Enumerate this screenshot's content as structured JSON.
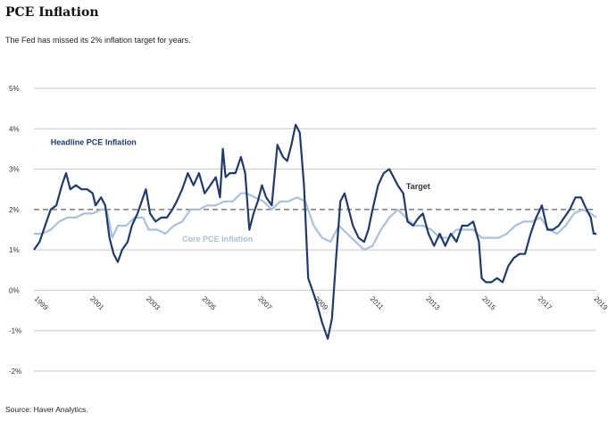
{
  "header": {
    "title": "PCE Inflation",
    "subtitle": "The Fed has missed its 2% inflation target for years."
  },
  "footer": {
    "source": "Source: Haver Analytics."
  },
  "colors": {
    "headline": "#1f3b6e",
    "core": "#a9c1da",
    "target": "#888888",
    "grid": "#c8c8c8"
  },
  "chart_data": {
    "type": "line",
    "title": "PCE Inflation",
    "ylim": [
      -2,
      5
    ],
    "xlim": [
      1999,
      2019.1
    ],
    "y_ticks": [
      -2,
      -1,
      0,
      1,
      2,
      3,
      4,
      5
    ],
    "y_tick_labels": [
      "-2%",
      "-1%",
      "0%",
      "1%",
      "2%",
      "3%",
      "4%",
      "5%"
    ],
    "x_ticks": [
      1999,
      2001,
      2003,
      2005,
      2007,
      2009,
      2011,
      2013,
      2015,
      2017,
      2019
    ],
    "x_tick_labels": [
      "1999",
      "2001",
      "2003",
      "2005",
      "2007",
      "2009",
      "2011",
      "2013",
      "2015",
      "2017",
      "2019"
    ],
    "grid": true,
    "target": {
      "name": "Target",
      "value": 2
    },
    "series": [
      {
        "name": "Headline PCE Inflation",
        "points": [
          [
            1999.0,
            1.0
          ],
          [
            1999.2,
            1.2
          ],
          [
            1999.4,
            1.6
          ],
          [
            1999.6,
            2.0
          ],
          [
            1999.8,
            2.1
          ],
          [
            2000.0,
            2.6
          ],
          [
            2000.15,
            2.9
          ],
          [
            2000.3,
            2.5
          ],
          [
            2000.5,
            2.6
          ],
          [
            2000.7,
            2.5
          ],
          [
            2000.9,
            2.5
          ],
          [
            2001.1,
            2.4
          ],
          [
            2001.2,
            2.1
          ],
          [
            2001.4,
            2.3
          ],
          [
            2001.55,
            2.1
          ],
          [
            2001.7,
            1.3
          ],
          [
            2001.85,
            0.9
          ],
          [
            2002.0,
            0.7
          ],
          [
            2002.15,
            1.0
          ],
          [
            2002.35,
            1.2
          ],
          [
            2002.5,
            1.6
          ],
          [
            2002.7,
            1.9
          ],
          [
            2002.85,
            2.2
          ],
          [
            2003.0,
            2.5
          ],
          [
            2003.15,
            1.9
          ],
          [
            2003.35,
            1.7
          ],
          [
            2003.55,
            1.8
          ],
          [
            2003.75,
            1.8
          ],
          [
            2003.95,
            2.0
          ],
          [
            2004.1,
            2.2
          ],
          [
            2004.3,
            2.5
          ],
          [
            2004.5,
            2.9
          ],
          [
            2004.7,
            2.6
          ],
          [
            2004.9,
            2.9
          ],
          [
            2005.1,
            2.4
          ],
          [
            2005.3,
            2.6
          ],
          [
            2005.5,
            2.8
          ],
          [
            2005.65,
            2.3
          ],
          [
            2005.75,
            3.5
          ],
          [
            2005.85,
            2.8
          ],
          [
            2006.0,
            2.9
          ],
          [
            2006.2,
            2.9
          ],
          [
            2006.4,
            3.3
          ],
          [
            2006.55,
            2.9
          ],
          [
            2006.7,
            1.5
          ],
          [
            2006.85,
            1.9
          ],
          [
            2007.0,
            2.2
          ],
          [
            2007.15,
            2.6
          ],
          [
            2007.3,
            2.3
          ],
          [
            2007.5,
            2.1
          ],
          [
            2007.7,
            3.6
          ],
          [
            2007.9,
            3.3
          ],
          [
            2008.05,
            3.2
          ],
          [
            2008.2,
            3.6
          ],
          [
            2008.35,
            4.1
          ],
          [
            2008.5,
            3.9
          ],
          [
            2008.65,
            2.6
          ],
          [
            2008.8,
            0.3
          ],
          [
            2008.95,
            0.0
          ],
          [
            2009.1,
            -0.3
          ],
          [
            2009.3,
            -0.8
          ],
          [
            2009.5,
            -1.2
          ],
          [
            2009.65,
            -0.7
          ],
          [
            2009.8,
            0.8
          ],
          [
            2009.95,
            2.2
          ],
          [
            2010.1,
            2.4
          ],
          [
            2010.25,
            2.0
          ],
          [
            2010.4,
            1.6
          ],
          [
            2010.6,
            1.3
          ],
          [
            2010.8,
            1.2
          ],
          [
            2010.95,
            1.5
          ],
          [
            2011.1,
            2.0
          ],
          [
            2011.3,
            2.6
          ],
          [
            2011.5,
            2.9
          ],
          [
            2011.7,
            3.0
          ],
          [
            2011.85,
            2.8
          ],
          [
            2012.0,
            2.6
          ],
          [
            2012.2,
            2.4
          ],
          [
            2012.35,
            1.7
          ],
          [
            2012.55,
            1.6
          ],
          [
            2012.75,
            1.8
          ],
          [
            2012.9,
            1.9
          ],
          [
            2013.1,
            1.4
          ],
          [
            2013.3,
            1.1
          ],
          [
            2013.5,
            1.4
          ],
          [
            2013.7,
            1.1
          ],
          [
            2013.9,
            1.4
          ],
          [
            2014.1,
            1.2
          ],
          [
            2014.3,
            1.6
          ],
          [
            2014.5,
            1.6
          ],
          [
            2014.7,
            1.7
          ],
          [
            2014.9,
            1.2
          ],
          [
            2015.0,
            0.3
          ],
          [
            2015.15,
            0.2
          ],
          [
            2015.35,
            0.2
          ],
          [
            2015.55,
            0.3
          ],
          [
            2015.75,
            0.2
          ],
          [
            2015.95,
            0.6
          ],
          [
            2016.15,
            0.8
          ],
          [
            2016.35,
            0.9
          ],
          [
            2016.55,
            0.9
          ],
          [
            2016.75,
            1.4
          ],
          [
            2016.95,
            1.8
          ],
          [
            2017.15,
            2.1
          ],
          [
            2017.35,
            1.5
          ],
          [
            2017.55,
            1.5
          ],
          [
            2017.75,
            1.6
          ],
          [
            2017.95,
            1.8
          ],
          [
            2018.15,
            2.0
          ],
          [
            2018.35,
            2.3
          ],
          [
            2018.55,
            2.3
          ],
          [
            2018.75,
            2.0
          ],
          [
            2018.9,
            1.8
          ],
          [
            2019.0,
            1.4
          ],
          [
            2019.1,
            1.4
          ]
        ]
      },
      {
        "name": "Core PCE Inflation",
        "points": [
          [
            1999.0,
            1.4
          ],
          [
            1999.3,
            1.4
          ],
          [
            1999.6,
            1.5
          ],
          [
            1999.9,
            1.7
          ],
          [
            2000.2,
            1.8
          ],
          [
            2000.5,
            1.8
          ],
          [
            2000.8,
            1.9
          ],
          [
            2001.1,
            1.9
          ],
          [
            2001.4,
            2.0
          ],
          [
            2001.6,
            2.0
          ],
          [
            2001.8,
            1.3
          ],
          [
            2002.0,
            1.6
          ],
          [
            2002.3,
            1.6
          ],
          [
            2002.6,
            1.8
          ],
          [
            2002.9,
            1.8
          ],
          [
            2003.1,
            1.5
          ],
          [
            2003.4,
            1.5
          ],
          [
            2003.7,
            1.4
          ],
          [
            2004.0,
            1.6
          ],
          [
            2004.3,
            1.7
          ],
          [
            2004.6,
            2.0
          ],
          [
            2004.9,
            2.0
          ],
          [
            2005.2,
            2.1
          ],
          [
            2005.5,
            2.1
          ],
          [
            2005.8,
            2.2
          ],
          [
            2006.1,
            2.2
          ],
          [
            2006.4,
            2.4
          ],
          [
            2006.6,
            2.4
          ],
          [
            2006.9,
            2.3
          ],
          [
            2007.2,
            2.2
          ],
          [
            2007.5,
            2.0
          ],
          [
            2007.8,
            2.2
          ],
          [
            2008.1,
            2.2
          ],
          [
            2008.4,
            2.3
          ],
          [
            2008.7,
            2.2
          ],
          [
            2009.0,
            1.6
          ],
          [
            2009.3,
            1.3
          ],
          [
            2009.6,
            1.2
          ],
          [
            2009.9,
            1.6
          ],
          [
            2010.2,
            1.4
          ],
          [
            2010.5,
            1.2
          ],
          [
            2010.8,
            1.0
          ],
          [
            2011.1,
            1.1
          ],
          [
            2011.4,
            1.5
          ],
          [
            2011.7,
            1.8
          ],
          [
            2012.0,
            2.0
          ],
          [
            2012.3,
            1.8
          ],
          [
            2012.6,
            1.6
          ],
          [
            2012.9,
            1.6
          ],
          [
            2013.2,
            1.5
          ],
          [
            2013.5,
            1.3
          ],
          [
            2013.8,
            1.3
          ],
          [
            2014.1,
            1.5
          ],
          [
            2014.4,
            1.5
          ],
          [
            2014.7,
            1.5
          ],
          [
            2015.0,
            1.3
          ],
          [
            2015.3,
            1.3
          ],
          [
            2015.6,
            1.3
          ],
          [
            2015.9,
            1.4
          ],
          [
            2016.2,
            1.6
          ],
          [
            2016.5,
            1.7
          ],
          [
            2016.8,
            1.7
          ],
          [
            2017.1,
            1.8
          ],
          [
            2017.4,
            1.5
          ],
          [
            2017.7,
            1.4
          ],
          [
            2018.0,
            1.6
          ],
          [
            2018.3,
            1.9
          ],
          [
            2018.6,
            2.0
          ],
          [
            2018.9,
            1.9
          ],
          [
            2019.1,
            1.8
          ]
        ]
      }
    ],
    "annotations": [
      {
        "text": "Headline PCE Inflation",
        "x": 1999.6,
        "y": 3.6
      },
      {
        "text": "Core PCE Inflation",
        "x": 2004.3,
        "y": 1.2
      },
      {
        "text": "Target",
        "x": 2012.3,
        "y": 2.5
      }
    ]
  }
}
